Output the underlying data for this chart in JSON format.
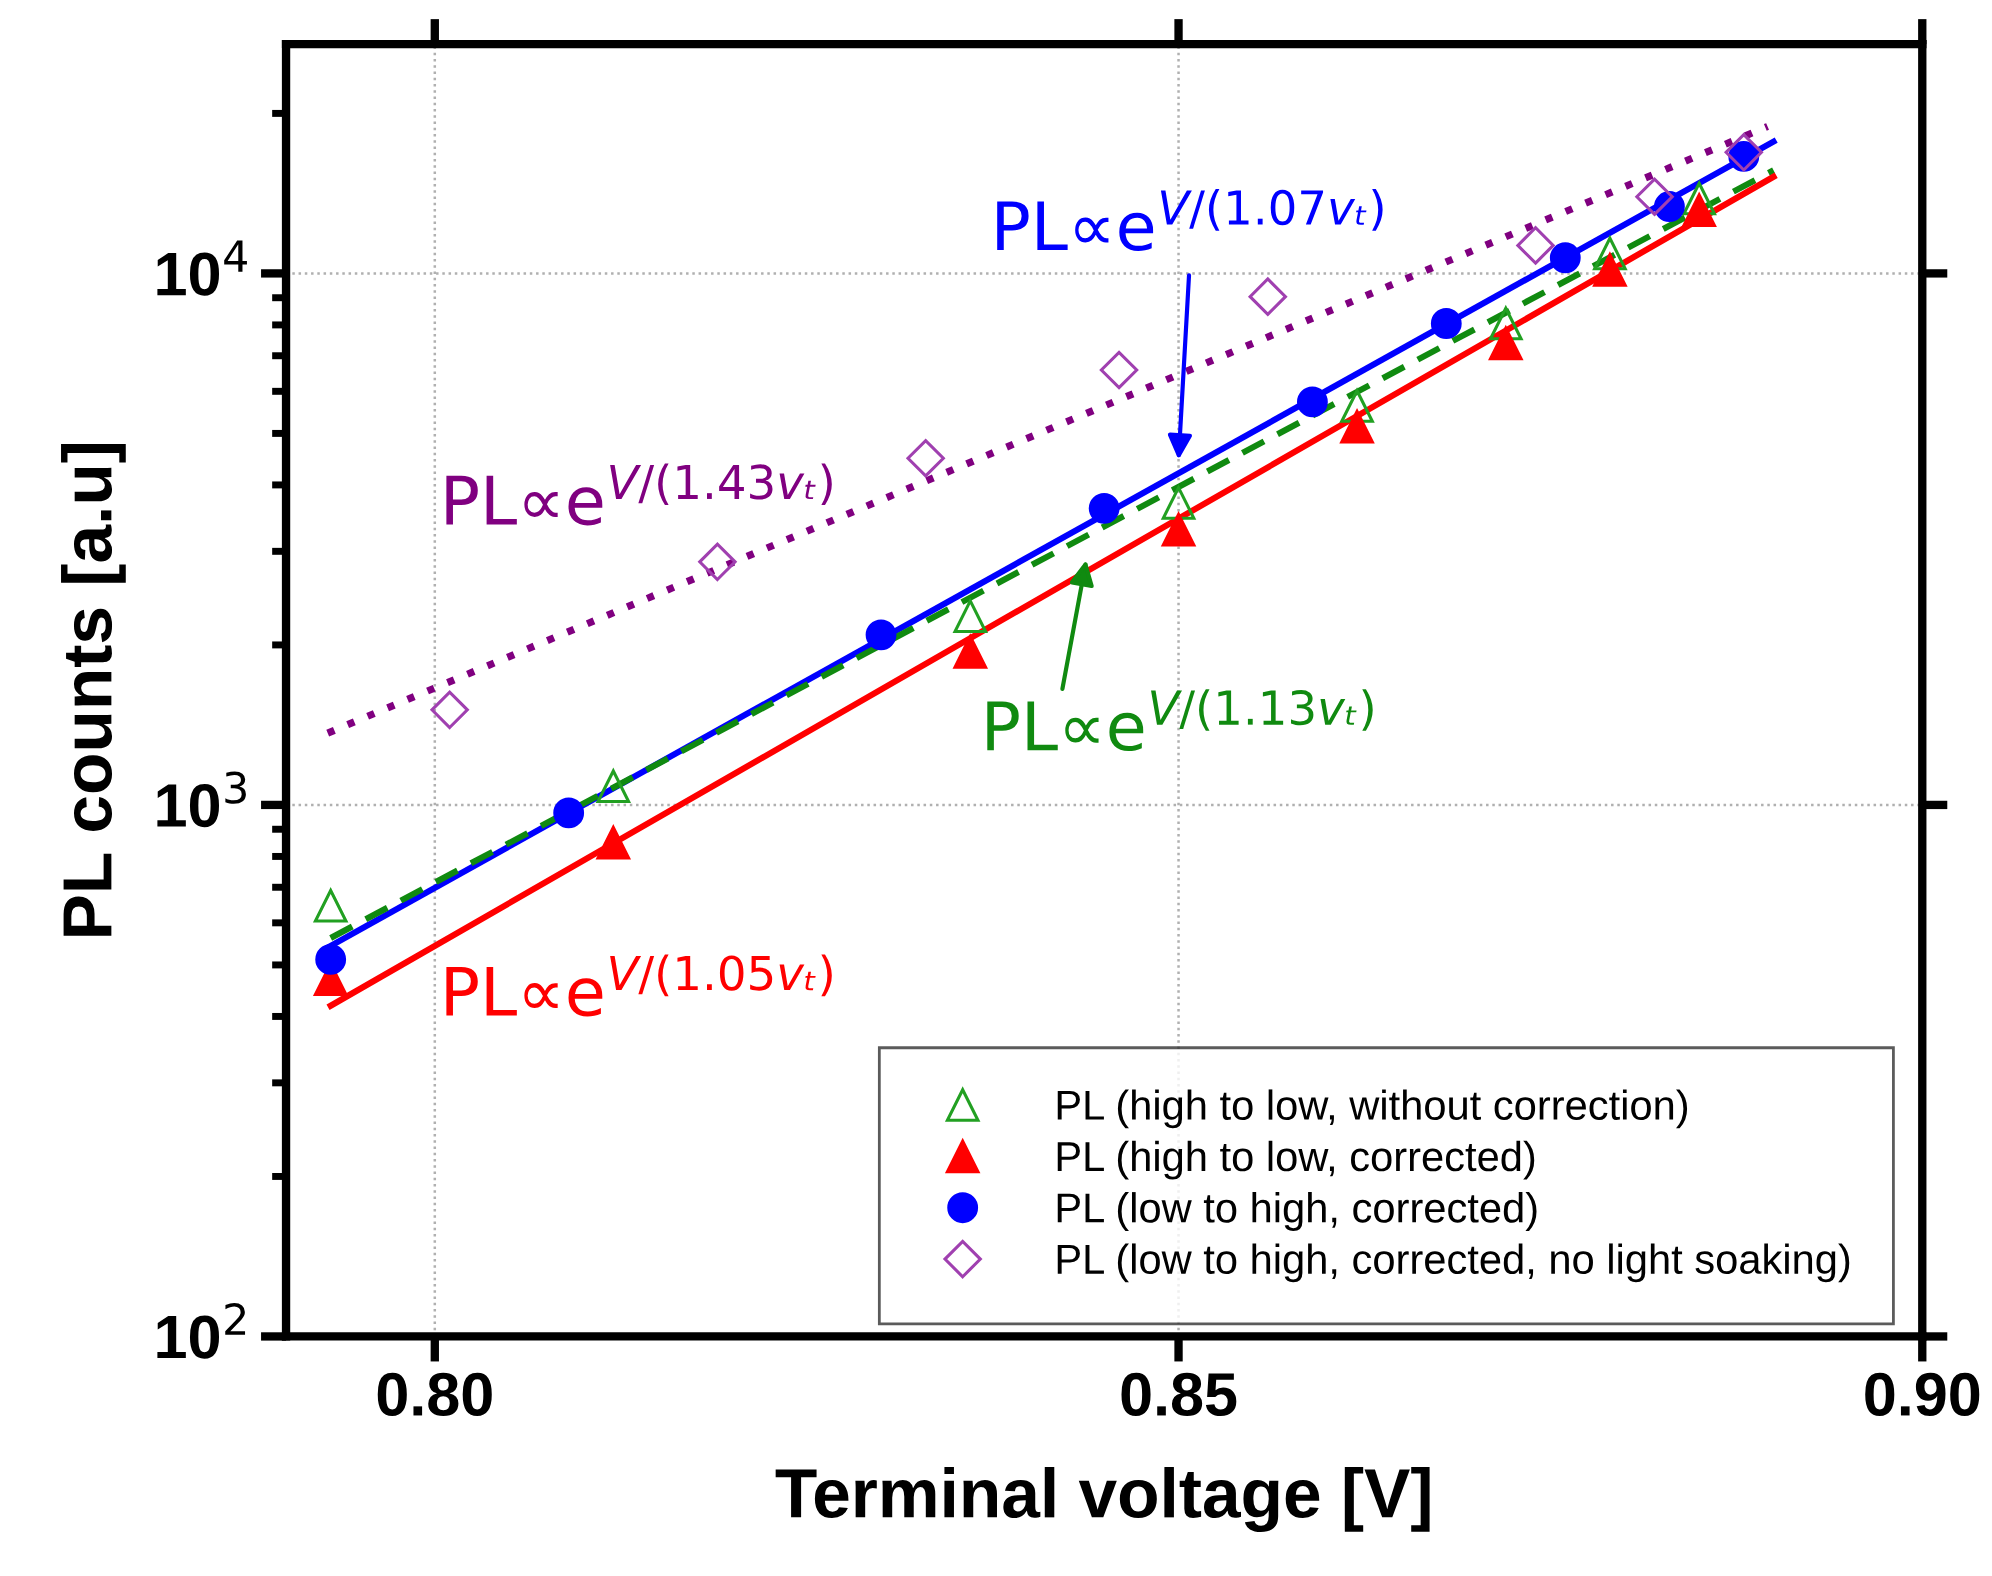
{
  "chart_data": {
    "type": "scatter",
    "xlabel": "Terminal voltage [V]",
    "ylabel": "PL counts [a.u]",
    "xlim": [
      0.79,
      0.9
    ],
    "xticks": [
      {
        "value": 0.8,
        "label": "0.80"
      },
      {
        "value": 0.85,
        "label": "0.85"
      },
      {
        "value": 0.9,
        "label": "0.90"
      }
    ],
    "log": "y",
    "ylim": [
      100,
      27000
    ],
    "yticks": [
      {
        "value": 100,
        "label": "10$^{2}$"
      },
      {
        "value": 1000,
        "label": "10$^{3}$"
      },
      {
        "value": 10000,
        "label": "10$^{4}$"
      }
    ],
    "grid": true,
    "legend": "bottom right",
    "series": [
      {
        "name": "PL (high to low, without correction)",
        "color": "#22a022",
        "marker": "triangle",
        "x": [
          0.793,
          0.812,
          0.836,
          0.85,
          0.862,
          0.872,
          0.879,
          0.885
        ],
        "values": [
          646,
          1084,
          2265,
          3700,
          5630,
          8050,
          10900,
          13830
        ]
      },
      {
        "name": "PL (high to low, corrected)",
        "color": "#ff0000",
        "marker": "triangle",
        "x": [
          0.793,
          0.812,
          0.836,
          0.85,
          0.862,
          0.872,
          0.879,
          0.885
        ],
        "values": [
          470,
          849,
          1941,
          3296,
          5150,
          7380,
          10150,
          13150
        ]
      },
      {
        "name": "PL (low to high, corrected)",
        "color": "#0000ff",
        "marker": "circle",
        "x": [
          0.793,
          0.809,
          0.83,
          0.845,
          0.859,
          0.868,
          0.876,
          0.883,
          0.888
        ],
        "values": [
          512,
          966,
          2089,
          3614,
          5730,
          8050,
          10700,
          13360,
          16600
        ]
      },
      {
        "name": "PL (low to high, corrected, no light soaking)",
        "color": "#a040b0",
        "marker": "diamond",
        "x": [
          0.801,
          0.819,
          0.833,
          0.846,
          0.856,
          0.874,
          0.882,
          0.888
        ],
        "values": [
          1510,
          2867,
          4490,
          6580,
          9040,
          11290,
          13940,
          16900
        ]
      },
      {
        "type": "line",
        "color": "#0000ff",
        "line_style": "solid",
        "x": [
          0.793,
          0.89
        ],
        "values": [
          543,
          17700
        ]
      },
      {
        "type": "line",
        "color": "#108a10",
        "line_style": "dashed",
        "x": [
          0.793,
          0.89
        ],
        "values": [
          562,
          15630
        ]
      },
      {
        "type": "line",
        "color": "#800080",
        "line_style": "dotted",
        "x": [
          0.7928,
          0.8896
        ],
        "values": [
          1365,
          18900
        ]
      },
      {
        "type": "line",
        "color": "#ff0000",
        "line_style": "solid",
        "x": [
          0.793,
          0.89
        ],
        "values": [
          419,
          15200
        ]
      }
    ],
    "annotations": [
      {
        "text": "PL∝e$^{V/(1.07vₜ)}$",
        "x": 0.85,
        "y": 4460
      },
      {
        "text": "PL∝e$^{V/(1.13vₜ)}$",
        "x": 0.8438,
        "y": 2890
      },
      "PL∝e$^{V/(1.43vₜ)}$",
      "PL∝e$^{V/(1.05vₜ)}$"
    ]
  }
}
